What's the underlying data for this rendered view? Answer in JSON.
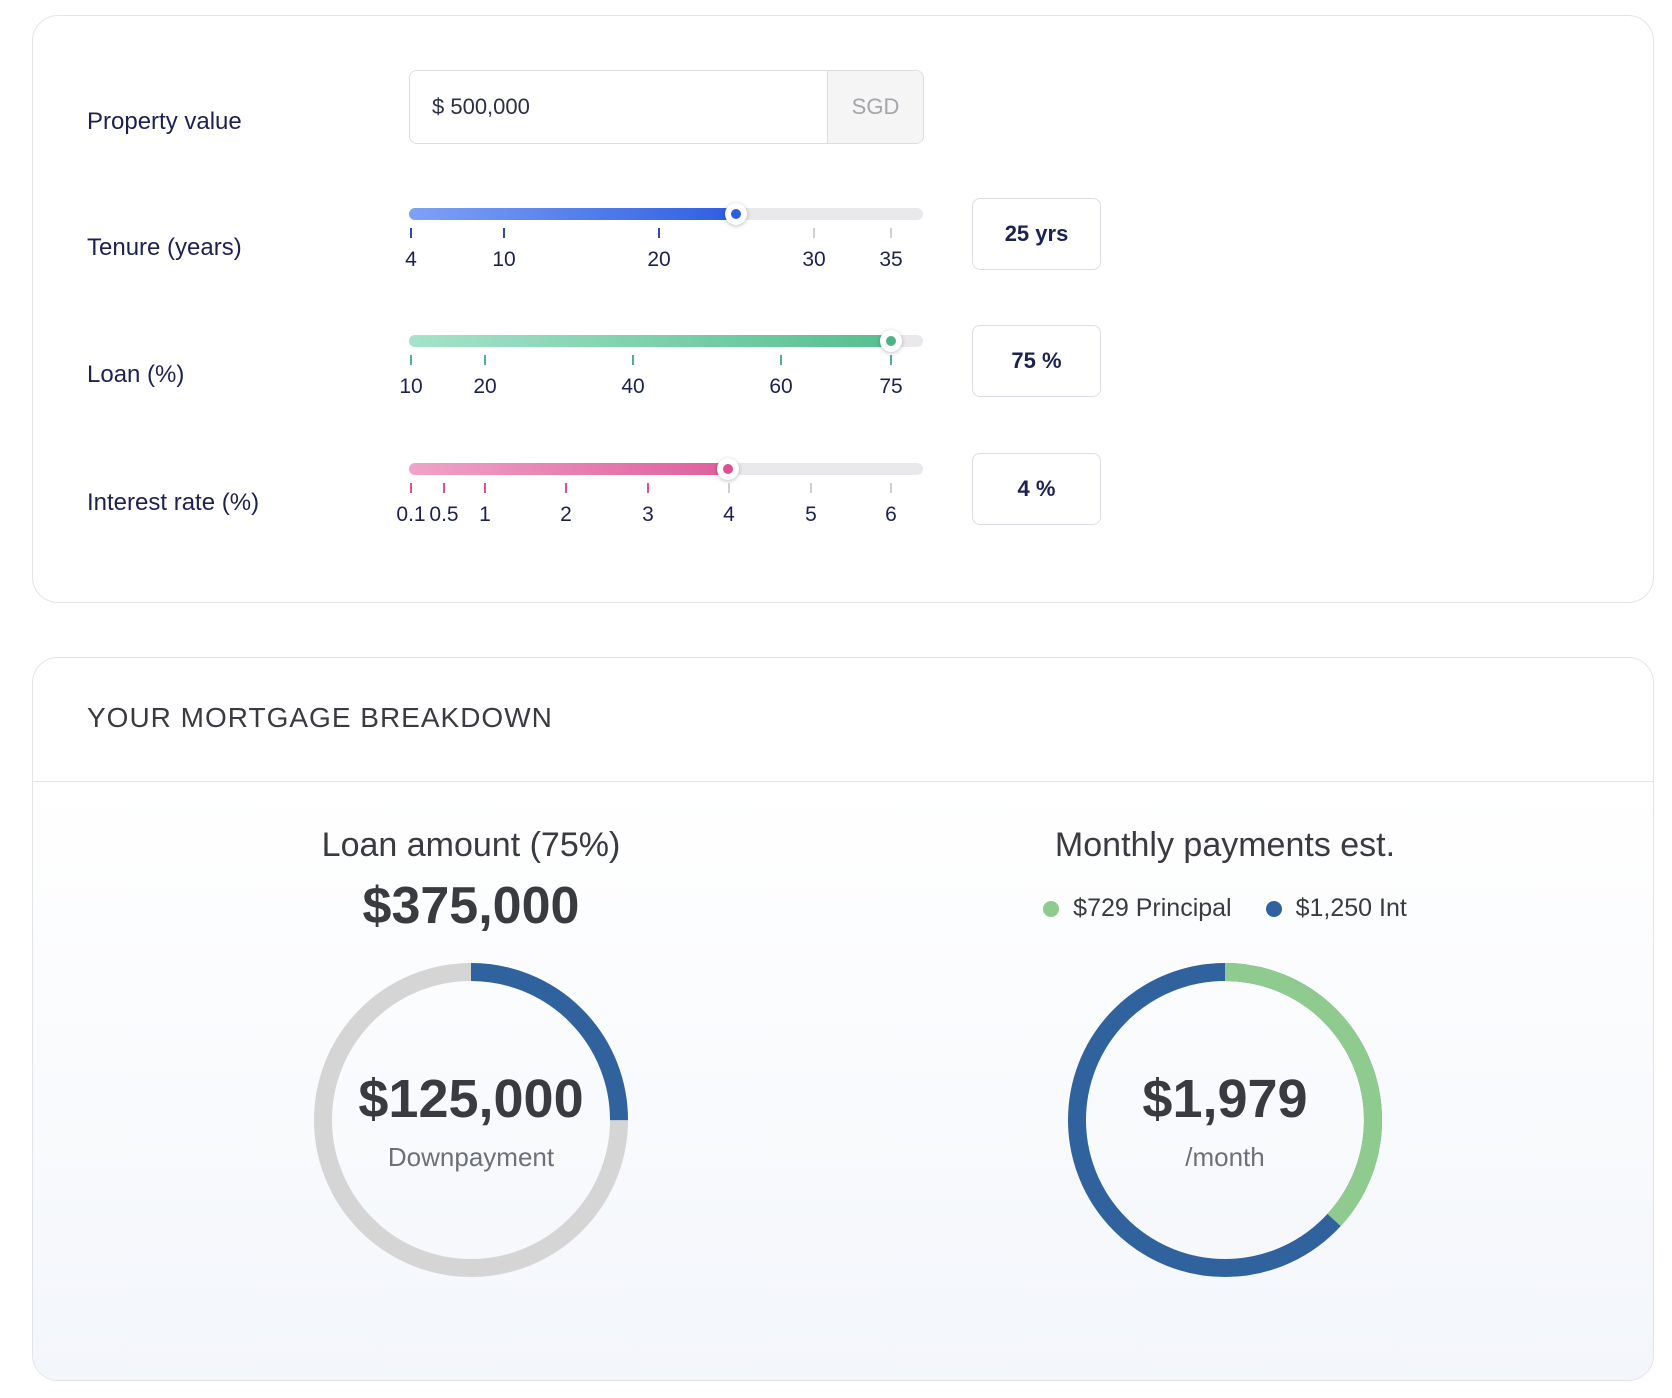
{
  "calculator": {
    "property": {
      "label": "Property value",
      "value": "$ 500,000",
      "currency": "SGD"
    },
    "tenure": {
      "label": "Tenure (years)",
      "value_label": "25 yrs",
      "fraction": 0.677,
      "ticks": [
        "4",
        "10",
        "20",
        "30",
        "35"
      ],
      "colors": {
        "fill_start": "#7fa1f6",
        "fill_end": "#2d5ee0",
        "dot": "#2d5ee0",
        "tick": "#2f4aa8"
      }
    },
    "loan": {
      "label": "Loan (%)",
      "value_label": "75 %",
      "fraction": 1.0,
      "ticks": [
        "10",
        "20",
        "40",
        "60",
        "75"
      ],
      "colors": {
        "fill_start": "#a6e2cb",
        "fill_end": "#55bf90",
        "dot": "#4fb287",
        "tick": "#4fb287"
      }
    },
    "interest": {
      "label": "Interest rate (%)",
      "value_label": "4 %",
      "fraction": 0.661,
      "ticks": [
        "0.1",
        "0.5",
        "1",
        "2",
        "3",
        "4",
        "5",
        "6"
      ],
      "colors": {
        "fill_start": "#f0a3c9",
        "fill_end": "#dd5e9c",
        "dot": "#dd4f94",
        "tick": "#dd4f94"
      }
    }
  },
  "breakdown": {
    "title": "YOUR MORTGAGE BREAKDOWN",
    "loan_section": {
      "heading": "Loan amount (75%)",
      "amount": "$375,000",
      "center_value": "$125,000",
      "center_label": "Downpayment",
      "highlight_fraction": 0.25,
      "colors": {
        "track": "#d5d5d5",
        "highlight": "#30639e"
      }
    },
    "monthly_section": {
      "heading": "Monthly payments est.",
      "legend": [
        {
          "label": "$729 Principal",
          "color": "#8fcb8e"
        },
        {
          "label": "$1,250 Int",
          "color": "#30639e"
        }
      ],
      "center_value": "$1,979",
      "center_label": "/month",
      "principal_fraction": 0.368,
      "colors": {
        "principal": "#8fcb8e",
        "interest": "#30639e"
      }
    }
  }
}
